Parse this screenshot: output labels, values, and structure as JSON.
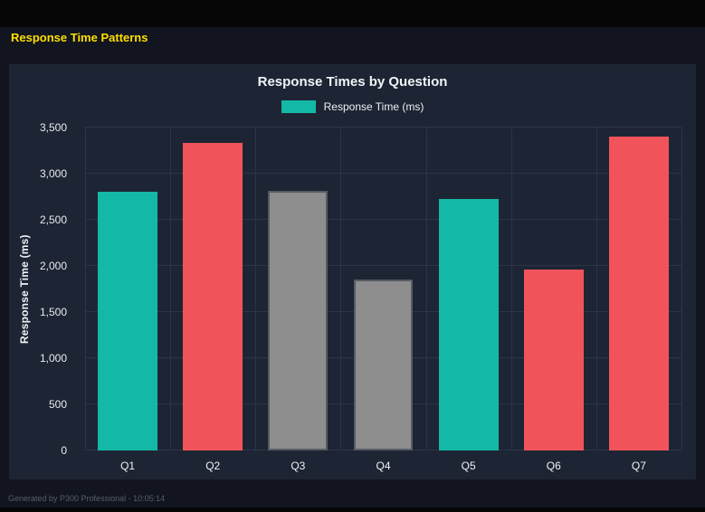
{
  "header": {
    "title": "Response Time Patterns"
  },
  "footer": {
    "text": "Generated by P300 Professional - 10:05:14"
  },
  "chart_data": {
    "type": "bar",
    "title": "Response Times by Question",
    "legend": "Response Time (ms)",
    "ylabel": "Response Time (ms)",
    "xlabel": "",
    "categories": [
      "Q1",
      "Q2",
      "Q3",
      "Q4",
      "Q5",
      "Q6",
      "Q7"
    ],
    "values": [
      2800,
      3330,
      2810,
      1850,
      2730,
      1960,
      3400
    ],
    "colors": [
      "teal",
      "red",
      "gray",
      "gray",
      "teal",
      "red",
      "red"
    ],
    "palette": {
      "teal": {
        "fill": "#14b8a6",
        "border": "#14b8a6"
      },
      "red": {
        "fill": "#f0545a",
        "border": "#f0545a"
      },
      "gray": {
        "fill": "#8e8e8e",
        "border": "#565c64"
      }
    },
    "ylim": [
      0,
      3500
    ],
    "ytick_step": 500,
    "grid": true,
    "legend_position": "top"
  },
  "colors": {
    "accent_title": "#ffdf00",
    "panel_bg": "#1d2534",
    "page_bg": "#12151f",
    "grid_line": "#2c3547"
  }
}
